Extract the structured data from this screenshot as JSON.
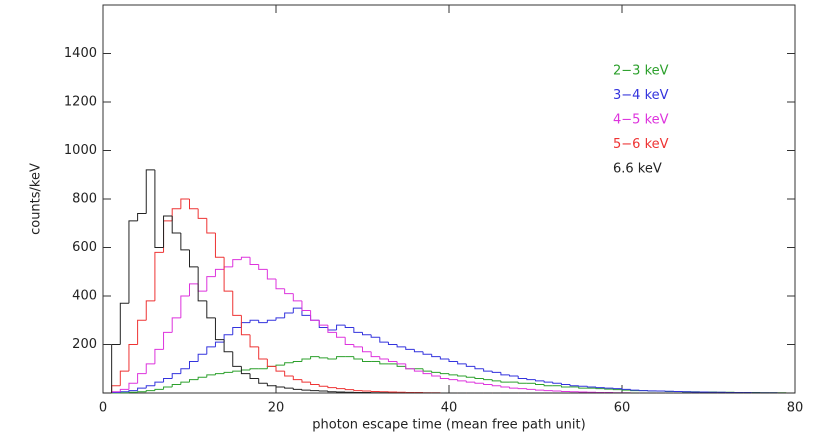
{
  "chart_data": {
    "type": "histogram",
    "xlabel": "photon escape time (mean free path unit)",
    "ylabel": "counts/keV",
    "xlim": [
      0,
      80
    ],
    "xticks": [
      0,
      20,
      40,
      60,
      80
    ],
    "ylim": [
      0,
      1600
    ],
    "yticks": [
      200,
      400,
      600,
      800,
      1000,
      1200,
      1400
    ],
    "legend": "upper right",
    "bins": [
      0,
      1,
      2,
      3,
      4,
      5,
      6,
      7,
      8,
      9,
      10,
      11,
      12,
      13,
      14,
      15,
      16,
      17,
      18,
      19,
      20,
      21,
      22,
      23,
      24,
      25,
      26,
      27,
      28,
      29,
      30,
      31,
      32,
      33,
      34,
      35,
      36,
      37,
      38,
      39,
      40,
      41,
      42,
      43,
      44,
      45,
      46,
      47,
      48,
      49,
      50,
      51,
      52,
      53,
      54,
      55,
      56,
      57,
      58,
      59,
      60,
      61,
      62,
      63,
      64,
      65,
      66,
      67,
      68,
      69,
      70,
      71,
      72,
      73,
      74,
      75,
      76,
      77,
      78,
      79,
      80
    ],
    "series": [
      {
        "name": "2−3 keV",
        "color": "#2ca02c",
        "values": [
          0,
          0,
          1,
          3,
          5,
          10,
          15,
          25,
          35,
          45,
          55,
          65,
          75,
          80,
          85,
          90,
          95,
          100,
          100,
          110,
          115,
          125,
          130,
          140,
          150,
          145,
          140,
          150,
          150,
          140,
          130,
          130,
          120,
          120,
          110,
          100,
          100,
          90,
          85,
          80,
          75,
          70,
          65,
          60,
          55,
          50,
          45,
          45,
          40,
          40,
          35,
          30,
          30,
          25,
          25,
          20,
          20,
          18,
          16,
          14,
          12,
          10,
          10,
          8,
          8,
          6,
          6,
          5,
          5,
          4,
          4,
          3,
          3,
          2,
          2,
          2,
          1,
          1,
          1,
          0
        ]
      },
      {
        "name": "3−4 keV",
        "color": "#3333dd",
        "values": [
          0,
          2,
          5,
          10,
          20,
          30,
          45,
          60,
          80,
          100,
          130,
          160,
          190,
          210,
          240,
          270,
          290,
          300,
          290,
          300,
          310,
          330,
          350,
          320,
          300,
          270,
          260,
          280,
          270,
          250,
          240,
          230,
          210,
          200,
          190,
          180,
          170,
          160,
          150,
          140,
          130,
          120,
          110,
          100,
          90,
          85,
          75,
          70,
          60,
          55,
          50,
          45,
          40,
          35,
          30,
          28,
          25,
          22,
          20,
          18,
          15,
          12,
          10,
          9,
          8,
          7,
          6,
          5,
          4,
          4,
          3,
          3,
          2,
          2,
          2,
          1,
          1,
          1,
          0,
          0
        ]
      },
      {
        "name": "4−5 keV",
        "color": "#dd33dd",
        "values": [
          0,
          5,
          15,
          40,
          80,
          120,
          180,
          250,
          310,
          400,
          450,
          420,
          480,
          510,
          520,
          550,
          560,
          530,
          510,
          470,
          430,
          410,
          380,
          340,
          300,
          280,
          250,
          230,
          200,
          190,
          170,
          150,
          140,
          130,
          120,
          100,
          90,
          80,
          70,
          60,
          55,
          50,
          45,
          40,
          35,
          30,
          25,
          20,
          18,
          15,
          12,
          10,
          8,
          6,
          5,
          4,
          3,
          2,
          2,
          1,
          1,
          0,
          0,
          0,
          0,
          0,
          0,
          0,
          0,
          0,
          0,
          0,
          0,
          0,
          0,
          0,
          0,
          0,
          0,
          0
        ]
      },
      {
        "name": "5−6 keV",
        "color": "#ee3333",
        "values": [
          0,
          30,
          90,
          200,
          300,
          380,
          580,
          710,
          760,
          800,
          760,
          720,
          660,
          560,
          420,
          320,
          240,
          190,
          140,
          110,
          90,
          70,
          55,
          45,
          35,
          28,
          22,
          18,
          14,
          10,
          8,
          6,
          5,
          4,
          3,
          2,
          2,
          1,
          1,
          0,
          0,
          0,
          0,
          0,
          0,
          0,
          0,
          0,
          0,
          0,
          0,
          0,
          0,
          0,
          0,
          0,
          0,
          0,
          0,
          0,
          0,
          0,
          0,
          0,
          0,
          0,
          0,
          0,
          0,
          0,
          0,
          0,
          0,
          0,
          0,
          0,
          0,
          0,
          0,
          0
        ]
      },
      {
        "name": "6.6 keV",
        "color": "#222222",
        "values": [
          0,
          200,
          370,
          710,
          740,
          920,
          600,
          730,
          660,
          590,
          520,
          380,
          310,
          220,
          170,
          110,
          80,
          60,
          40,
          30,
          25,
          20,
          15,
          12,
          10,
          8,
          5,
          4,
          3,
          2,
          2,
          1,
          1,
          0,
          0,
          0,
          0,
          0,
          0,
          0,
          0,
          0,
          0,
          0,
          0,
          0,
          0,
          0,
          0,
          0,
          0,
          0,
          0,
          0,
          0,
          0,
          0,
          0,
          0,
          0,
          0,
          0,
          0,
          0,
          0,
          0,
          0,
          0,
          0,
          0,
          0,
          0,
          0,
          0,
          0,
          0,
          0,
          0,
          0,
          0
        ]
      }
    ]
  }
}
